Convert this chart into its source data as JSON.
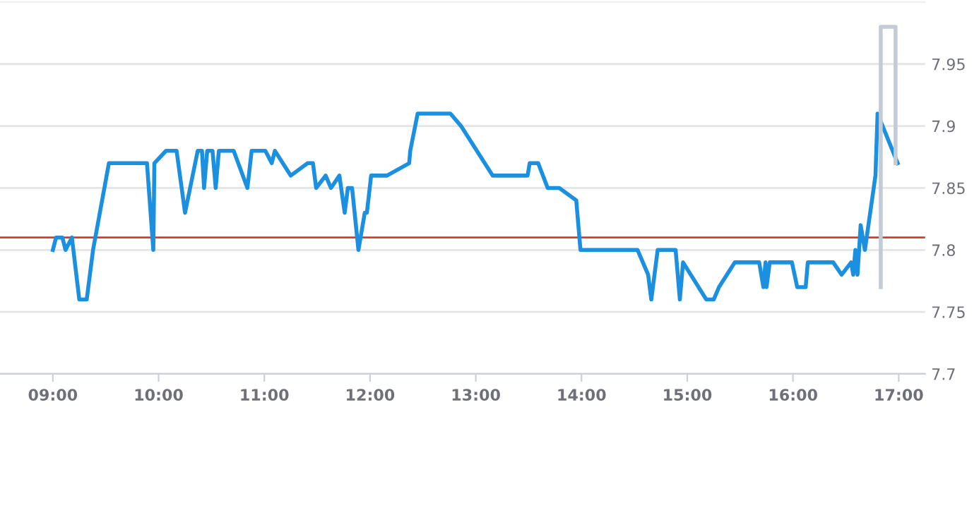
{
  "chart_data": {
    "type": "line",
    "xlim": [
      8.5,
      17.25
    ],
    "xticks": [
      {
        "value": 9,
        "label": "09:00"
      },
      {
        "value": 10,
        "label": "10:00"
      },
      {
        "value": 11,
        "label": "11:00"
      },
      {
        "value": 12,
        "label": "12:00"
      },
      {
        "value": 13,
        "label": "13:00"
      },
      {
        "value": 14,
        "label": "14:00"
      },
      {
        "value": 15,
        "label": "15:00"
      },
      {
        "value": 16,
        "label": "16:00"
      },
      {
        "value": 17,
        "label": "17:00"
      }
    ],
    "ylim": [
      7.7,
      8.0
    ],
    "yticks": [
      7.7,
      7.75,
      7.8,
      7.85,
      7.9,
      7.95
    ],
    "grid": "y",
    "marker": "none",
    "line_style": "solid",
    "ref_lines": [
      {
        "axis": "y",
        "value": 7.81,
        "color": "#d93a32"
      }
    ],
    "series": [
      {
        "color": "#1b8fe0",
        "x": [
          9.0,
          9.03,
          9.09,
          9.12,
          9.18,
          9.25,
          9.32,
          9.38,
          9.53,
          9.89,
          9.95,
          9.96,
          10.07,
          10.17,
          10.25,
          10.37,
          10.41,
          10.43,
          10.46,
          10.51,
          10.54,
          10.57,
          10.71,
          10.84,
          10.88,
          11.01,
          11.07,
          11.1,
          11.25,
          11.41,
          11.46,
          11.49,
          11.58,
          11.63,
          11.71,
          11.76,
          11.79,
          11.83,
          11.89,
          11.95,
          11.97,
          12.01,
          12.16,
          12.37,
          12.38,
          12.45,
          12.76,
          12.86,
          13.16,
          13.49,
          13.51,
          13.59,
          13.68,
          13.79,
          13.95,
          13.99,
          14.53,
          14.63,
          14.66,
          14.72,
          14.89,
          14.93,
          14.96,
          15.18,
          15.25,
          15.3,
          15.45,
          15.68,
          15.72,
          15.74,
          15.75,
          15.78,
          15.99,
          16.04,
          16.12,
          16.14,
          16.38,
          16.46,
          16.55,
          16.57,
          16.59,
          16.61,
          16.64,
          16.68,
          16.78,
          16.8,
          16.99
        ],
        "values": [
          7.8,
          7.81,
          7.81,
          7.8,
          7.81,
          7.76,
          7.76,
          7.8,
          7.87,
          7.87,
          7.8,
          7.87,
          7.88,
          7.88,
          7.83,
          7.88,
          7.88,
          7.85,
          7.88,
          7.88,
          7.85,
          7.88,
          7.88,
          7.85,
          7.88,
          7.88,
          7.87,
          7.88,
          7.86,
          7.87,
          7.87,
          7.85,
          7.86,
          7.85,
          7.86,
          7.83,
          7.85,
          7.85,
          7.8,
          7.83,
          7.83,
          7.86,
          7.86,
          7.87,
          7.88,
          7.91,
          7.91,
          7.9,
          7.86,
          7.86,
          7.87,
          7.87,
          7.85,
          7.85,
          7.84,
          7.8,
          7.8,
          7.78,
          7.76,
          7.8,
          7.8,
          7.76,
          7.79,
          7.76,
          7.76,
          7.77,
          7.79,
          7.79,
          7.77,
          7.79,
          7.77,
          7.79,
          7.79,
          7.77,
          7.77,
          7.79,
          7.79,
          7.78,
          7.79,
          7.78,
          7.8,
          7.78,
          7.82,
          7.8,
          7.86,
          7.91,
          7.87
        ]
      },
      {
        "color": "#c3cbd6",
        "x": [
          16.83,
          16.83,
          16.97,
          16.97
        ],
        "values": [
          7.77,
          7.98,
          7.98,
          7.87
        ]
      }
    ]
  }
}
